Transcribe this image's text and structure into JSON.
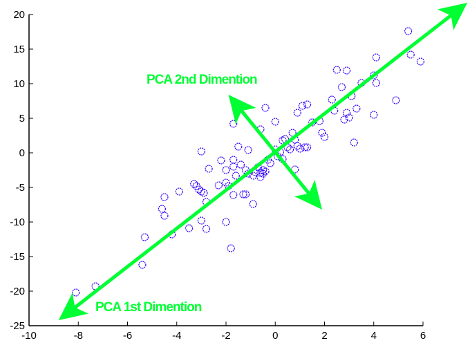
{
  "chart_data": {
    "type": "scatter",
    "title": "",
    "xlabel": "",
    "ylabel": "",
    "xlim": [
      -10,
      6
    ],
    "ylim": [
      -25,
      20
    ],
    "grid": false,
    "xticks": [
      -10,
      -8,
      -6,
      -4,
      -2,
      0,
      2,
      4,
      6
    ],
    "yticks": [
      -25,
      -20,
      -15,
      -10,
      -5,
      0,
      5,
      10,
      15,
      20
    ],
    "marker": {
      "shape": "circle-open",
      "color": "#3300ff",
      "radius": 5
    },
    "series": [
      {
        "name": "data",
        "points": [
          [
            -8.1,
            -20.2
          ],
          [
            -7.3,
            -19.3
          ],
          [
            -5.4,
            -16.2
          ],
          [
            -5.3,
            -12.2
          ],
          [
            -4.2,
            -11.8
          ],
          [
            -4.5,
            -9.1
          ],
          [
            -4.6,
            -8.1
          ],
          [
            -4.5,
            -6.4
          ],
          [
            -3.9,
            -5.6
          ],
          [
            -3.5,
            -10.9
          ],
          [
            -3.0,
            -9.8
          ],
          [
            -2.8,
            -11.0
          ],
          [
            -2.8,
            -7.1
          ],
          [
            -3.3,
            -4.5
          ],
          [
            -3.2,
            -4.8
          ],
          [
            -3.1,
            -5.3
          ],
          [
            -3.0,
            -5.6
          ],
          [
            -2.9,
            -5.8
          ],
          [
            -2.7,
            -2.3
          ],
          [
            -3.0,
            0.2
          ],
          [
            -2.3,
            -4.7
          ],
          [
            -2.2,
            -1.1
          ],
          [
            -2.0,
            -2.5
          ],
          [
            -2.0,
            -4.3
          ],
          [
            -1.9,
            -4.8
          ],
          [
            -1.8,
            -13.8
          ],
          [
            -2.0,
            -10.0
          ],
          [
            -1.7,
            -6.1
          ],
          [
            -1.6,
            -3.3
          ],
          [
            -1.7,
            -1.0
          ],
          [
            -1.7,
            -2.0
          ],
          [
            -1.5,
            0.9
          ],
          [
            -1.4,
            -1.7
          ],
          [
            -1.2,
            -2.5
          ],
          [
            -1.1,
            -3.0
          ],
          [
            -1.3,
            -6.0
          ],
          [
            -1.2,
            -6.0
          ],
          [
            -0.9,
            -7.4
          ],
          [
            -1.1,
            0.4
          ],
          [
            -1.7,
            4.2
          ],
          [
            -0.6,
            3.4
          ],
          [
            -0.4,
            6.5
          ],
          [
            -0.9,
            -3.3
          ],
          [
            -0.8,
            -2.8
          ],
          [
            -0.7,
            -2.1
          ],
          [
            -0.6,
            -3.5
          ],
          [
            -0.5,
            -3.0
          ],
          [
            -0.4,
            -2.7
          ],
          [
            -0.6,
            -2.9
          ],
          [
            -0.5,
            -2.5
          ],
          [
            -0.3,
            -1.0
          ],
          [
            -0.2,
            -1.5
          ],
          [
            0.0,
            0.5
          ],
          [
            0.1,
            -0.5
          ],
          [
            0.2,
            0.1
          ],
          [
            0.3,
            1.8
          ],
          [
            0.3,
            -0.9
          ],
          [
            0.4,
            2.0
          ],
          [
            0.5,
            0.8
          ],
          [
            0.6,
            0.5
          ],
          [
            0.0,
            4.5
          ],
          [
            0.7,
            2.9
          ],
          [
            0.8,
            1.9
          ],
          [
            0.8,
            -2.4
          ],
          [
            0.9,
            1.0
          ],
          [
            0.9,
            5.8
          ],
          [
            1.0,
            0.6
          ],
          [
            1.1,
            6.8
          ],
          [
            1.3,
            7.0
          ],
          [
            1.2,
            0.8
          ],
          [
            1.3,
            0.8
          ],
          [
            1.5,
            4.4
          ],
          [
            1.8,
            4.6
          ],
          [
            1.9,
            2.9
          ],
          [
            2.0,
            2.3
          ],
          [
            2.3,
            7.7
          ],
          [
            2.4,
            6.1
          ],
          [
            2.5,
            12.0
          ],
          [
            2.7,
            9.5
          ],
          [
            2.8,
            4.8
          ],
          [
            2.9,
            11.9
          ],
          [
            2.9,
            5.8
          ],
          [
            3.0,
            5.1
          ],
          [
            3.1,
            8.2
          ],
          [
            3.2,
            1.5
          ],
          [
            3.3,
            6.4
          ],
          [
            3.5,
            10.1
          ],
          [
            4.0,
            11.2
          ],
          [
            4.0,
            5.5
          ],
          [
            4.1,
            10.1
          ],
          [
            4.1,
            13.8
          ],
          [
            4.9,
            7.6
          ],
          [
            5.4,
            17.6
          ],
          [
            5.5,
            14.2
          ],
          [
            5.9,
            13.2
          ]
        ]
      }
    ],
    "annotations": [
      {
        "text": "PCA 1st Dimention",
        "kind": "arrow",
        "from": [
          -8.8,
          -24.2
        ],
        "to": [
          7.8,
          21.7
        ],
        "double_headed": true,
        "color": "#00ff33"
      },
      {
        "text": "PCA 2nd Dimention",
        "kind": "arrow",
        "from": [
          -1.9,
          8.4
        ],
        "to": [
          1.9,
          -8.2
        ],
        "double_headed": true,
        "color": "#00ff33"
      }
    ]
  },
  "labels": {
    "pca1": "PCA 1st Dimention",
    "pca2": "PCA 2nd Dimention"
  },
  "colors": {
    "arrow": "#00ff33",
    "marker": "#3300ff",
    "axis": "#000000"
  }
}
